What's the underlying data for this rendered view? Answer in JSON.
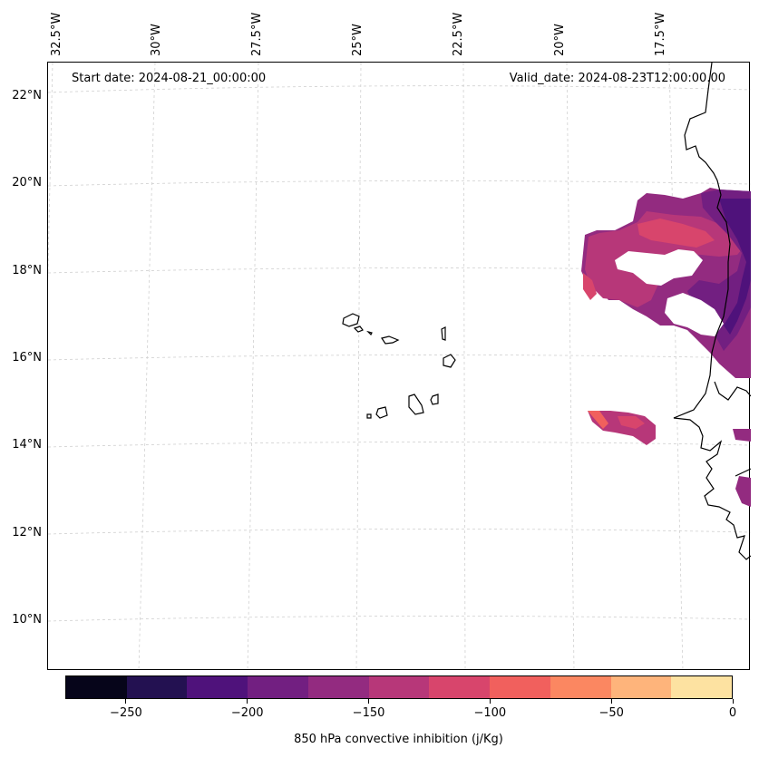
{
  "map": {
    "start_date_text": "Start date: 2024-08-21_00:00:00",
    "valid_date_text": "Valid_date: 2024-08-23T12:00:00.00",
    "lon_labels": [
      "32.5°W",
      "30°W",
      "27.5°W",
      "25°W",
      "22.5°W",
      "20°W",
      "17.5°W"
    ],
    "lat_labels": [
      "22°N",
      "20°N",
      "18°N",
      "16°N",
      "14°N",
      "12°N",
      "10°N"
    ],
    "gridlines": true,
    "variable": "850 hPa convective inhibition"
  },
  "colorbar": {
    "label": "850 hPa convective inhibition (j/Kg)",
    "tick_labels": [
      "−250",
      "−200",
      "−150",
      "−100",
      "−50",
      "0"
    ],
    "tick_values": [
      -250,
      -200,
      -150,
      -100,
      -50,
      0
    ],
    "range": [
      -275,
      0
    ],
    "levels": [
      -275,
      -250,
      -225,
      -200,
      -175,
      -150,
      -125,
      -100,
      -75,
      -50,
      -25,
      0
    ],
    "colors": [
      "#06051a",
      "#231151",
      "#4f127b",
      "#721f81",
      "#932b80",
      "#b73779",
      "#d8456c",
      "#f1605d",
      "#fb8761",
      "#feb47b",
      "#fde2a1"
    ]
  }
}
